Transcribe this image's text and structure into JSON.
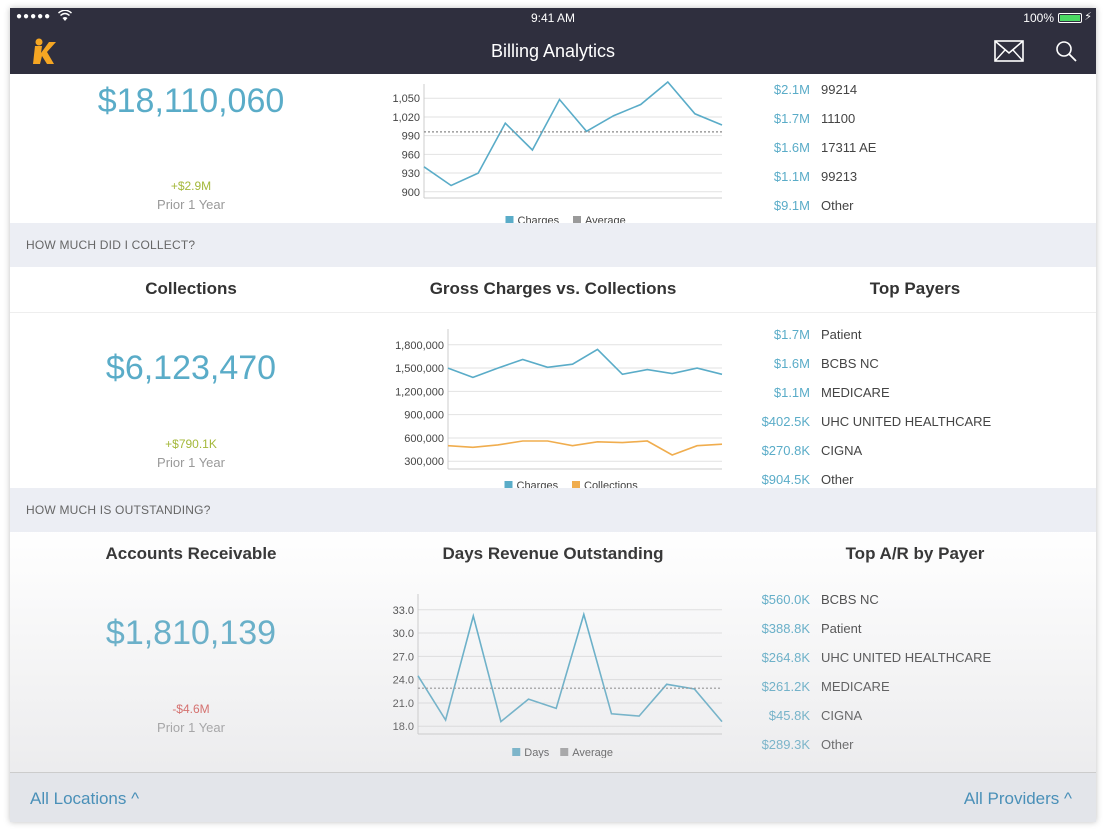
{
  "status_bar": {
    "signal": "●●●●●",
    "time": "9:41 AM",
    "battery": "100%"
  },
  "nav": {
    "title": "Billing Analytics",
    "icons": [
      "app-logo",
      "mail-icon",
      "search-icon"
    ]
  },
  "charges_section": {
    "total": "$18,110,060",
    "delta": "+$2.9M",
    "prior": "Prior 1 Year",
    "top_codes": [
      {
        "amount": "$2.1M",
        "name": "99214"
      },
      {
        "amount": "$1.7M",
        "name": "11100"
      },
      {
        "amount": "$1.6M",
        "name": "17311 AE"
      },
      {
        "amount": "$1.1M",
        "name": "99213"
      },
      {
        "amount": "$9.1M",
        "name": "Other"
      }
    ]
  },
  "collect_section": {
    "band_label": "HOW MUCH DID I COLLECT?",
    "col1_title": "Collections",
    "col2_title": "Gross Charges vs. Collections",
    "col3_title": "Top Payers",
    "total": "$6,123,470",
    "delta": "+$790.1K",
    "prior": "Prior 1 Year",
    "top_payers": [
      {
        "amount": "$1.7M",
        "name": "Patient"
      },
      {
        "amount": "$1.6M",
        "name": "BCBS NC"
      },
      {
        "amount": "$1.1M",
        "name": "MEDICARE"
      },
      {
        "amount": "$402.5K",
        "name": "UHC UNITED HEALTHCARE"
      },
      {
        "amount": "$270.8K",
        "name": "CIGNA"
      },
      {
        "amount": "$904.5K",
        "name": "Other"
      }
    ]
  },
  "outstanding_section": {
    "band_label": "HOW MUCH IS OUTSTANDING?",
    "col1_title": "Accounts Receivable",
    "col2_title": "Days Revenue Outstanding",
    "col3_title": "Top A/R by Payer",
    "total": "$1,810,139",
    "delta": "-$4.6M",
    "prior": "Prior 1 Year",
    "top_ar": [
      {
        "amount": "$560.0K",
        "name": "BCBS NC"
      },
      {
        "amount": "$388.8K",
        "name": "Patient"
      },
      {
        "amount": "$264.8K",
        "name": "UHC UNITED HEALTHCARE"
      },
      {
        "amount": "$261.2K",
        "name": "MEDICARE"
      },
      {
        "amount": "$45.8K",
        "name": "CIGNA"
      },
      {
        "amount": "$289.3K",
        "name": "Other"
      }
    ]
  },
  "footer": {
    "locations": "All Locations ^",
    "providers": "All Providers ^"
  },
  "colors": {
    "blue": "#5aacc8",
    "orange": "#f0ad4e",
    "grey": "#9a9a9a",
    "green_delta": "#a4b83a",
    "red_delta": "#d9534f"
  },
  "chart_data": [
    {
      "type": "line",
      "ylim": [
        890,
        1060
      ],
      "yticks": [
        "900",
        "930",
        "960",
        "990",
        "1,020",
        "1,050"
      ],
      "ytick_values": [
        900,
        930,
        960,
        990,
        1020,
        1050
      ],
      "series": [
        {
          "name": "Charges",
          "values": [
            940,
            910,
            930,
            1010,
            967,
            1048,
            997,
            1022,
            1040,
            1076,
            1025,
            1007
          ]
        },
        {
          "name": "Average",
          "values": [
            996,
            996,
            996,
            996,
            996,
            996,
            996,
            996,
            996,
            996,
            996,
            996
          ]
        }
      ],
      "legend": [
        "Charges",
        "Average"
      ]
    },
    {
      "type": "line",
      "ylim": [
        200000,
        1900000
      ],
      "yticks": [
        "300,000",
        "600,000",
        "900,000",
        "1,200,000",
        "1,500,000",
        "1,800,000"
      ],
      "ytick_values": [
        300000,
        600000,
        900000,
        1200000,
        1500000,
        1800000
      ],
      "series": [
        {
          "name": "Charges",
          "values": [
            1500000,
            1380000,
            1500000,
            1610000,
            1510000,
            1550000,
            1740000,
            1420000,
            1480000,
            1430000,
            1500000,
            1420000
          ]
        },
        {
          "name": "Collections",
          "values": [
            500000,
            480000,
            510000,
            560000,
            560000,
            500000,
            550000,
            540000,
            560000,
            380000,
            500000,
            520000
          ]
        }
      ],
      "legend": [
        "Charges",
        "Collections"
      ]
    },
    {
      "type": "line",
      "ylim": [
        17,
        34
      ],
      "yticks": [
        "18.0",
        "21.0",
        "24.0",
        "27.0",
        "30.0",
        "33.0"
      ],
      "ytick_values": [
        18,
        21,
        24,
        27,
        30,
        33
      ],
      "series": [
        {
          "name": "Days",
          "values": [
            24.5,
            18.8,
            32.2,
            18.6,
            21.5,
            20.3,
            32.4,
            19.6,
            19.3,
            23.4,
            22.8,
            18.6
          ]
        },
        {
          "name": "Average",
          "values": [
            22.9,
            22.9,
            22.9,
            22.9,
            22.9,
            22.9,
            22.9,
            22.9,
            22.9,
            22.9,
            22.9,
            22.9
          ]
        }
      ],
      "legend": [
        "Days",
        "Average"
      ]
    }
  ]
}
